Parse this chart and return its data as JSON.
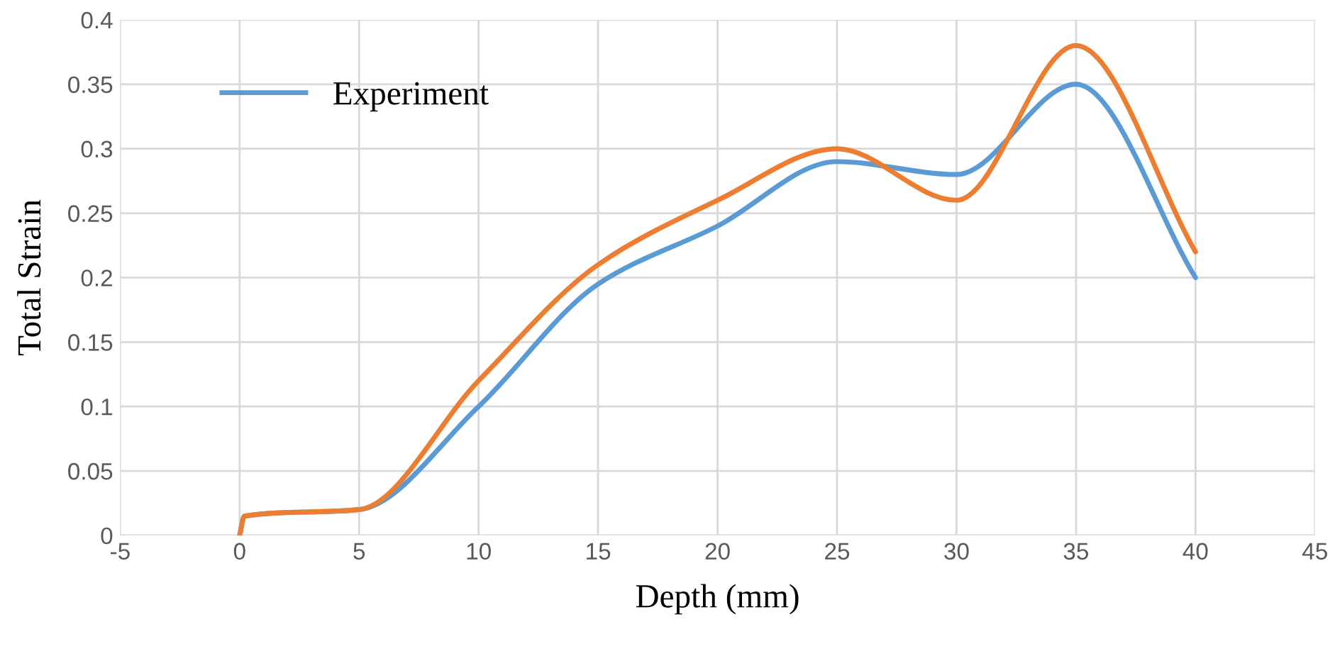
{
  "chart_data": {
    "type": "line",
    "xlabel": "Depth (mm)",
    "ylabel": "Total Strain",
    "xlim": [
      -5,
      45
    ],
    "xticks": [
      -5,
      0,
      5,
      10,
      15,
      20,
      25,
      30,
      35,
      40,
      45
    ],
    "ylim": [
      0,
      0.4
    ],
    "yticks": [
      0,
      0.05,
      0.1,
      0.15,
      0.2,
      0.25,
      0.3,
      0.35,
      0.4
    ],
    "grid": true,
    "legend": "top left",
    "marker": "none",
    "line_style": "solid",
    "series": [
      {
        "name": "Experiment",
        "color": "#5b9bd5",
        "x": [
          0,
          0.2,
          5,
          10,
          15,
          20,
          25,
          30,
          35,
          40
        ],
        "values": [
          0,
          0.015,
          0.02,
          0.1,
          0.195,
          0.24,
          0.29,
          0.28,
          0.35,
          0.2
        ]
      },
      {
        "color": "#ed7d31",
        "x": [
          0,
          0.2,
          5,
          10,
          15,
          20,
          25,
          30,
          35,
          40
        ],
        "values": [
          0,
          0.015,
          0.02,
          0.12,
          0.21,
          0.26,
          0.3,
          0.26,
          0.38,
          0.22
        ]
      }
    ]
  }
}
